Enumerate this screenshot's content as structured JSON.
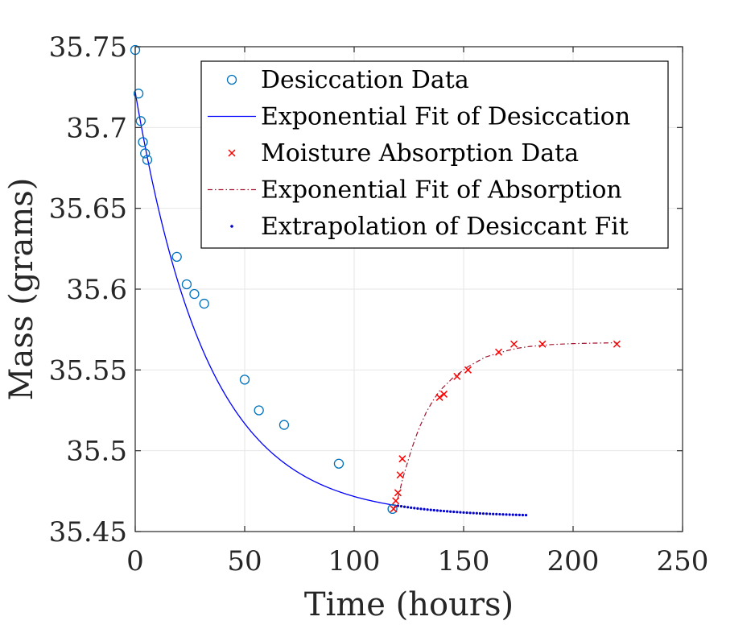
{
  "chart_data": {
    "type": "scatter",
    "xlabel": "Time (hours)",
    "ylabel": "Mass (grams)",
    "xlim": [
      0,
      250
    ],
    "ylim": [
      35.45,
      35.75
    ],
    "xticks": [
      "0",
      "50",
      "100",
      "150",
      "200",
      "250"
    ],
    "yticks": [
      "35.45",
      "35.5",
      "35.55",
      "35.6",
      "35.65",
      "35.7",
      "35.75"
    ],
    "grid": true,
    "legend_position": "top-right",
    "colors": {
      "desiccation": "#0072BD",
      "fit_desiccation": "#0000ff",
      "absorption": "#ff0000",
      "fit_absorption": "#a2142f",
      "extrapolation": "#0000cc",
      "grid": "#e6e6e6",
      "axis": "#262626"
    },
    "series": [
      {
        "name": "Desiccation Data",
        "marker": "circle",
        "x": [
          0,
          1.5,
          2.5,
          3.5,
          4.5,
          5.5,
          19,
          23.5,
          27,
          31.5,
          50,
          56.5,
          68,
          93,
          117.5
        ],
        "y": [
          35.748,
          35.721,
          35.704,
          35.691,
          35.684,
          35.68,
          35.62,
          35.603,
          35.597,
          35.591,
          35.544,
          35.525,
          35.516,
          35.492,
          35.464
        ]
      },
      {
        "name": "Exponential Fit of Desiccation",
        "line": "solid",
        "model": {
          "A": 35.459,
          "B": 0.263,
          "k": 0.0303
        },
        "x_range": [
          0,
          120
        ]
      },
      {
        "name": "Moisture Absorption Data",
        "marker": "x",
        "x": [
          118,
          119,
          120,
          121,
          122,
          139,
          141,
          147,
          152,
          166,
          173,
          186,
          220
        ],
        "y": [
          35.464,
          35.469,
          35.474,
          35.485,
          35.495,
          35.533,
          35.535,
          35.546,
          35.55,
          35.561,
          35.566,
          35.566,
          35.566
        ]
      },
      {
        "name": "Exponential Fit of Absorption",
        "line": "dash-dot",
        "x": [
          118,
          119,
          120,
          121,
          122,
          124,
          126,
          128,
          130,
          133,
          136,
          139,
          142,
          145,
          148,
          152,
          156,
          160,
          165,
          170,
          175,
          180,
          190,
          200,
          210,
          220
        ],
        "y": [
          35.464,
          35.467,
          35.471,
          35.476,
          35.482,
          35.491,
          35.5,
          35.508,
          35.515,
          35.524,
          35.531,
          35.537,
          35.541,
          35.545,
          35.548,
          35.552,
          35.555,
          35.558,
          35.56,
          35.562,
          35.5635,
          35.5645,
          35.5657,
          35.5663,
          35.5666,
          35.5668
        ]
      },
      {
        "name": "Extrapolation of Desiccant Fit",
        "marker": "dot",
        "model": {
          "A": 35.459,
          "B": 0.263,
          "k": 0.0303
        },
        "x_range": [
          120,
          179
        ],
        "x_step": 1.5
      }
    ]
  }
}
